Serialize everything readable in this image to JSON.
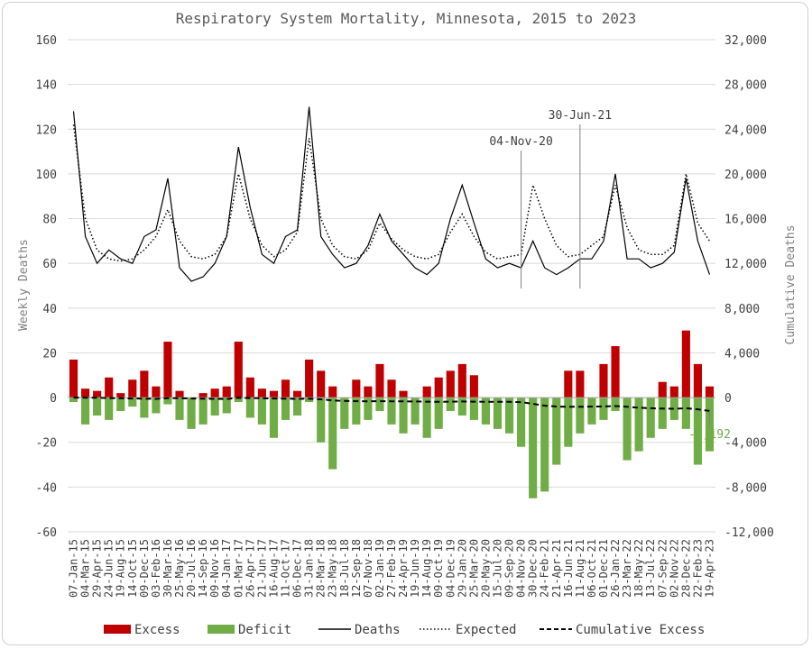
{
  "chart_data": {
    "type": "bar",
    "title": "Respiratory System Mortality, Minnesota, 2015 to 2023",
    "ylabel_left": "Weekly Deaths",
    "ylabel_right": "Cumulative Deaths",
    "left_axis": {
      "range": [
        -60,
        160
      ],
      "ticks": [
        "160",
        "140",
        "120",
        "100",
        "80",
        "60",
        "40",
        "20",
        "0",
        "-20",
        "-40",
        "-60"
      ]
    },
    "right_axis": {
      "range": [
        -12000,
        32000
      ],
      "ticks": [
        "32,000",
        "28,000",
        "24,000",
        "20,000",
        "16,000",
        "12,000",
        "8,000",
        "4,000",
        "0",
        "-4,000",
        "-8,000",
        "-12,000"
      ]
    },
    "x_tick_labels": [
      "07-Jan-15",
      "04-Mar-15",
      "29-Apr-15",
      "24-Jun-15",
      "19-Aug-15",
      "14-Oct-15",
      "09-Dec-15",
      "03-Feb-16",
      "30-Mar-16",
      "25-May-16",
      "20-Jul-16",
      "14-Sep-16",
      "09-Nov-16",
      "04-Jan-17",
      "01-Mar-17",
      "26-Apr-17",
      "21-Jun-17",
      "16-Aug-17",
      "11-Oct-17",
      "06-Dec-17",
      "31-Jan-18",
      "28-Mar-18",
      "23-May-18",
      "18-Jul-18",
      "12-Sep-18",
      "07-Nov-18",
      "02-Jan-19",
      "27-Feb-19",
      "24-Apr-19",
      "19-Jun-19",
      "14-Aug-19",
      "09-Oct-19",
      "04-Dec-19",
      "29-Jan-20",
      "25-Mar-20",
      "20-May-20",
      "15-Jul-20",
      "09-Sep-20",
      "04-Nov-20",
      "30-Dec-20",
      "24-Feb-21",
      "21-Apr-21",
      "16-Jun-21",
      "11-Aug-21",
      "06-Oct-21",
      "01-Dec-21",
      "26-Jan-22",
      "23-Mar-22",
      "18-May-22",
      "13-Jul-22",
      "07-Sep-22",
      "02-Nov-22",
      "28-Dec-22",
      "22-Feb-23",
      "19-Apr-23"
    ],
    "annotations": [
      {
        "label": "04-Nov-20",
        "x_index": 38
      },
      {
        "label": "30-Jun-21",
        "x_index": 43
      },
      {
        "label": "-1,192",
        "series": "Cumulative Excess",
        "x_index": 54
      }
    ],
    "legend": {
      "placement": "bottom",
      "items": [
        {
          "name": "Excess",
          "style": "bar",
          "color": "#c00000"
        },
        {
          "name": "Deficit",
          "style": "bar",
          "color": "#70ad47"
        },
        {
          "name": "Deaths",
          "style": "line",
          "color": "#000000"
        },
        {
          "name": "Expected",
          "style": "dotted",
          "color": "#000000"
        },
        {
          "name": "Cumulative Excess",
          "style": "dashed",
          "color": "#000000"
        }
      ]
    },
    "colors": {
      "excess": "#c00000",
      "deficit": "#70ad47",
      "line": "#000000",
      "grid": "#d9d9d9",
      "annotation_text": "#404040",
      "cumulative_label": "#70ad47"
    },
    "grid": true,
    "series_approx_note": "Weekly values sampled every 8 weeks (one per x tick label); values are approximate readings.",
    "series": [
      {
        "name": "Deaths",
        "axis": "left",
        "values": [
          128,
          72,
          60,
          66,
          62,
          60,
          72,
          75,
          98,
          58,
          52,
          54,
          60,
          72,
          112,
          85,
          64,
          60,
          72,
          75,
          130,
          72,
          64,
          58,
          60,
          68,
          82,
          70,
          64,
          58,
          55,
          60,
          80,
          95,
          78,
          62,
          58,
          60,
          58,
          70,
          58,
          55,
          58,
          62,
          62,
          70,
          100,
          62,
          62,
          58,
          60,
          65,
          98,
          70,
          55
        ]
      },
      {
        "name": "Expected",
        "axis": "left",
        "values": [
          122,
          80,
          66,
          62,
          61,
          62,
          66,
          72,
          84,
          70,
          63,
          62,
          64,
          72,
          100,
          80,
          68,
          63,
          66,
          74,
          116,
          80,
          68,
          63,
          62,
          66,
          78,
          71,
          66,
          63,
          62,
          64,
          74,
          82,
          72,
          65,
          62,
          63,
          64,
          95,
          80,
          68,
          63,
          64,
          68,
          72,
          95,
          76,
          66,
          64,
          64,
          68,
          100,
          78,
          70
        ]
      },
      {
        "name": "Excess",
        "axis": "left",
        "values": [
          17,
          4,
          3,
          9,
          2,
          8,
          12,
          5,
          25,
          3,
          0,
          2,
          4,
          5,
          25,
          9,
          4,
          3,
          8,
          3,
          17,
          12,
          5,
          0,
          8,
          5,
          15,
          8,
          3,
          0,
          5,
          9,
          12,
          15,
          10,
          0,
          0,
          0,
          0,
          0,
          0,
          0,
          12,
          12,
          0,
          15,
          23,
          0,
          0,
          0,
          7,
          5,
          30,
          15,
          5
        ]
      },
      {
        "name": "Deficit",
        "axis": "left",
        "values": [
          -2,
          -12,
          -8,
          -10,
          -6,
          -4,
          -9,
          -7,
          -3,
          -10,
          -14,
          -12,
          -8,
          -7,
          -2,
          -9,
          -12,
          -18,
          -10,
          -8,
          -2,
          -20,
          -32,
          -14,
          -12,
          -10,
          -6,
          -12,
          -16,
          -12,
          -18,
          -14,
          -6,
          -8,
          -10,
          -12,
          -14,
          -16,
          -22,
          -45,
          -42,
          -30,
          -22,
          -16,
          -12,
          -10,
          -6,
          -28,
          -24,
          -18,
          -14,
          -10,
          -14,
          -30,
          -24
        ]
      },
      {
        "name": "Cumulative Excess",
        "axis": "right",
        "values": [
          0,
          -10,
          -20,
          -40,
          -60,
          -80,
          -100,
          -110,
          -50,
          -60,
          -80,
          -100,
          -110,
          -120,
          -20,
          -40,
          -60,
          -80,
          -100,
          -120,
          -100,
          -150,
          -250,
          -300,
          -320,
          -330,
          -320,
          -330,
          -340,
          -350,
          -360,
          -380,
          -360,
          -350,
          -360,
          -370,
          -380,
          -380,
          -400,
          -560,
          -720,
          -800,
          -820,
          -820,
          -800,
          -790,
          -760,
          -820,
          -900,
          -950,
          -980,
          -1000,
          -950,
          -1050,
          -1192
        ]
      }
    ]
  }
}
